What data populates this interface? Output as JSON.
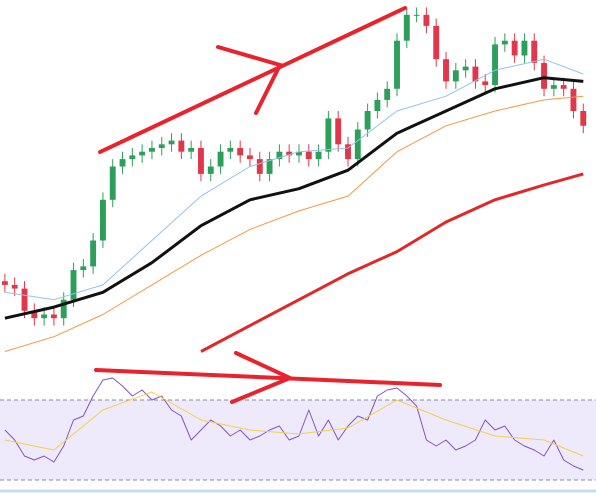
{
  "chart_data": [
    {
      "type": "candlestick",
      "x": [
        0,
        1,
        2,
        3,
        4,
        5,
        6,
        7,
        8,
        9,
        10,
        11,
        12,
        13,
        14,
        15,
        16,
        17,
        18,
        19,
        20,
        21,
        22,
        23,
        24,
        25,
        26,
        27,
        28,
        29,
        30,
        31,
        32,
        33,
        34,
        35,
        36,
        37,
        38,
        39,
        40,
        41,
        42,
        43,
        44,
        45,
        46,
        47,
        48,
        49,
        50,
        51,
        52,
        53,
        54,
        55,
        56,
        57,
        58,
        59
      ],
      "open": [
        24,
        23,
        22,
        16,
        14,
        15,
        14,
        19,
        27,
        28,
        35,
        46,
        55,
        57,
        58,
        59,
        60,
        61,
        62,
        59,
        60,
        53,
        55,
        59,
        60,
        58,
        57,
        53,
        57,
        59,
        58,
        59,
        57,
        59,
        68,
        61,
        57,
        65,
        70,
        73,
        76,
        89,
        96,
        96,
        93,
        84,
        78,
        81,
        82,
        78,
        77,
        88,
        89,
        85,
        89,
        83,
        76,
        77,
        76,
        70
      ],
      "high": [
        26,
        25,
        24,
        18,
        17,
        17,
        21,
        29,
        30,
        37,
        48,
        57,
        59,
        60,
        61,
        62,
        63,
        64,
        64,
        62,
        62,
        57,
        61,
        62,
        62,
        60,
        59,
        59,
        61,
        61,
        61,
        61,
        61,
        70,
        70,
        63,
        67,
        72,
        75,
        78,
        91,
        98,
        98,
        98,
        95,
        86,
        83,
        84,
        84,
        80,
        90,
        91,
        91,
        91,
        91,
        85,
        79,
        79,
        78,
        72
      ],
      "low": [
        21,
        20,
        14,
        12,
        12,
        12,
        12,
        17,
        25,
        26,
        33,
        44,
        53,
        55,
        56,
        57,
        58,
        59,
        57,
        57,
        51,
        51,
        53,
        57,
        56,
        55,
        51,
        51,
        55,
        56,
        56,
        55,
        55,
        57,
        59,
        55,
        55,
        63,
        68,
        71,
        74,
        87,
        94,
        91,
        82,
        76,
        76,
        79,
        76,
        75,
        75,
        86,
        83,
        83,
        81,
        74,
        74,
        74,
        68,
        64
      ],
      "close": [
        23,
        22,
        16,
        14,
        15,
        14,
        19,
        27,
        28,
        35,
        46,
        55,
        57,
        58,
        59,
        60,
        61,
        62,
        59,
        60,
        53,
        55,
        59,
        60,
        58,
        57,
        53,
        57,
        59,
        58,
        59,
        57,
        59,
        68,
        61,
        57,
        65,
        70,
        73,
        76,
        89,
        96,
        96,
        93,
        84,
        78,
        81,
        82,
        78,
        77,
        88,
        89,
        85,
        89,
        83,
        76,
        77,
        76,
        70,
        66
      ],
      "up_color": "#2e9e5b",
      "down_color": "#e0384a",
      "xlim": [
        -0.5,
        60.3
      ],
      "ylim": [
        0,
        100
      ],
      "series": [
        {
          "color": "#93c3ea",
          "width": 1,
          "x": [
            0,
            5,
            10,
            15,
            20,
            25,
            30,
            35,
            40,
            45,
            50,
            55,
            59
          ],
          "values": [
            21,
            19,
            23,
            35,
            47,
            55,
            59,
            60,
            70,
            74,
            81,
            84,
            80
          ]
        },
        {
          "color": "#f29a45",
          "width": 1,
          "x": [
            0,
            5,
            10,
            15,
            20,
            25,
            30,
            35,
            40,
            45,
            50,
            55,
            59
          ],
          "values": [
            5,
            9,
            15,
            23,
            31,
            38,
            43,
            47,
            59,
            66,
            70,
            73,
            74
          ]
        },
        {
          "color": "#111111",
          "width": 3,
          "x": [
            0,
            5,
            10,
            15,
            20,
            25,
            30,
            35,
            40,
            45,
            50,
            55,
            59
          ],
          "values": [
            14,
            17,
            21,
            29,
            39,
            46,
            49,
            54,
            64,
            70,
            76,
            79,
            78
          ]
        },
        {
          "color": "#e02828",
          "width": 3,
          "x": [
            20,
            25,
            30,
            35,
            40,
            45,
            50,
            55,
            59
          ],
          "values": [
            5,
            12,
            19,
            26,
            32,
            40,
            46,
            50,
            53
          ]
        }
      ]
    },
    {
      "type": "line",
      "xlim": [
        -0.5,
        60.3
      ],
      "ylim": [
        22,
        82
      ],
      "yticks": [
        30,
        70
      ],
      "band_color": "#efeafb",
      "series": [
        {
          "color": "#7e57c2",
          "width": 1,
          "x": [
            0,
            1,
            2,
            3,
            4,
            5,
            6,
            7,
            8,
            9,
            10,
            11,
            12,
            13,
            14,
            15,
            16,
            17,
            18,
            19,
            20,
            21,
            22,
            23,
            24,
            25,
            26,
            27,
            28,
            29,
            30,
            31,
            32,
            33,
            34,
            35,
            36,
            37,
            38,
            39,
            40,
            41,
            42,
            43,
            44,
            45,
            46,
            47,
            48,
            49,
            50,
            51,
            52,
            53,
            54,
            55,
            56,
            57,
            58,
            59
          ],
          "values": [
            55,
            50,
            42,
            40,
            42,
            39,
            47,
            60,
            62,
            72,
            80,
            81,
            77,
            72,
            75,
            70,
            72,
            65,
            62,
            50,
            55,
            60,
            57,
            52,
            55,
            50,
            52,
            55,
            57,
            50,
            52,
            65,
            52,
            60,
            50,
            57,
            62,
            60,
            72,
            75,
            76,
            72,
            67,
            50,
            47,
            50,
            45,
            47,
            50,
            60,
            55,
            57,
            50,
            47,
            45,
            42,
            50,
            40,
            37,
            35
          ]
        },
        {
          "color": "#f2d04a",
          "width": 1,
          "x": [
            0,
            5,
            10,
            15,
            20,
            25,
            30,
            35,
            40,
            45,
            50,
            55,
            59
          ],
          "values": [
            50,
            45,
            65,
            74,
            60,
            55,
            53,
            56,
            70,
            60,
            52,
            50,
            42
          ]
        }
      ]
    }
  ]
}
